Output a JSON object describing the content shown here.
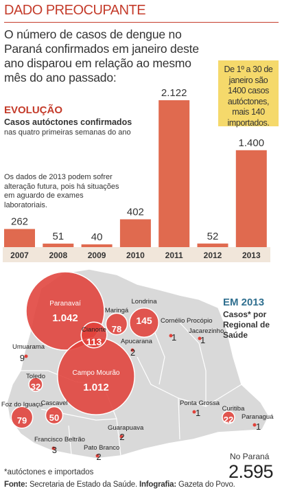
{
  "header": {
    "kicker": "DADO PREOCUPANTE",
    "intro": "O número de casos de dengue no Paraná confirmados em janeiro deste ano disparou em relação ao mesmo mês do ano passado:"
  },
  "note_box": {
    "text": "De 1º a 30 de janeiro são 1400 casos autóctones, mais 140 importados."
  },
  "evolution": {
    "title": "EVOLUÇÃO",
    "subtitle": "Casos autóctones confirmados",
    "subtitle2": "nas quatro primeiras semanas do ano",
    "note": "Os dados de 2013 podem sofrer alteração futura, pois há situações em aguardo de exames laboratoriais."
  },
  "chart_data": [
    {
      "type": "bar",
      "categories": [
        "2007",
        "2008",
        "2009",
        "2010",
        "2011",
        "2012",
        "2013"
      ],
      "values": [
        262,
        51,
        40,
        402,
        2122,
        52,
        1400
      ],
      "value_labels": [
        "262",
        "51",
        "40",
        "402",
        "2.122",
        "52",
        "1.400"
      ],
      "title": "EVOLUÇÃO",
      "ylim": [
        0,
        2122
      ],
      "bar_color": "#e06a4f"
    },
    {
      "type": "scatter",
      "title": "EM 2013",
      "points": [
        {
          "name": "Paranavaí",
          "value": 1042,
          "label": "1.042"
        },
        {
          "name": "Campo Mourão",
          "value": 1012,
          "label": "1.012"
        },
        {
          "name": "Londrina",
          "value": 145,
          "label": "145"
        },
        {
          "name": "Cianorte",
          "value": 113,
          "label": "113"
        },
        {
          "name": "Foz do Iguaçu",
          "value": 79,
          "label": "79"
        },
        {
          "name": "Maringá",
          "value": 78,
          "label": "78"
        },
        {
          "name": "Cascavel",
          "value": 50,
          "label": "50"
        },
        {
          "name": "Toledo",
          "value": 32,
          "label": "32"
        },
        {
          "name": "Curitiba",
          "value": 22,
          "label": "22"
        },
        {
          "name": "Umuarama",
          "value": 9,
          "label": "9"
        },
        {
          "name": "Francisco Beltrão",
          "value": 3,
          "label": "3"
        },
        {
          "name": "Apucarana",
          "value": 2,
          "label": "2"
        },
        {
          "name": "Guarapuava",
          "value": 2,
          "label": "2"
        },
        {
          "name": "Pato Branco",
          "value": 2,
          "label": "2"
        },
        {
          "name": "Cornélio Procópio",
          "value": 1,
          "label": "1"
        },
        {
          "name": "Jacarezinho",
          "value": 1,
          "label": "1"
        },
        {
          "name": "Ponta Grossa",
          "value": 1,
          "label": "1"
        },
        {
          "name": "Paranaguá",
          "value": 1,
          "label": "1"
        }
      ]
    }
  ],
  "map": {
    "title": "EM 2013",
    "subtitle": "Casos* por Regional de Saúde",
    "total_label": "No Paraná",
    "total_value": "2.595",
    "footnote": "*autóctones e importados"
  },
  "source": {
    "label1": "Fonte:",
    "text1": "Secretaria de Estado da Saúde.",
    "label2": "Infografia:",
    "text2": "Gazeta do Povo."
  },
  "colors": {
    "accent": "#c43b2a",
    "bar": "#e06a4f",
    "bubble": "#e0413a",
    "map_land": "#d9d9d9",
    "map_blue": "#2f6f8f",
    "note_box": "#f5d96b"
  }
}
